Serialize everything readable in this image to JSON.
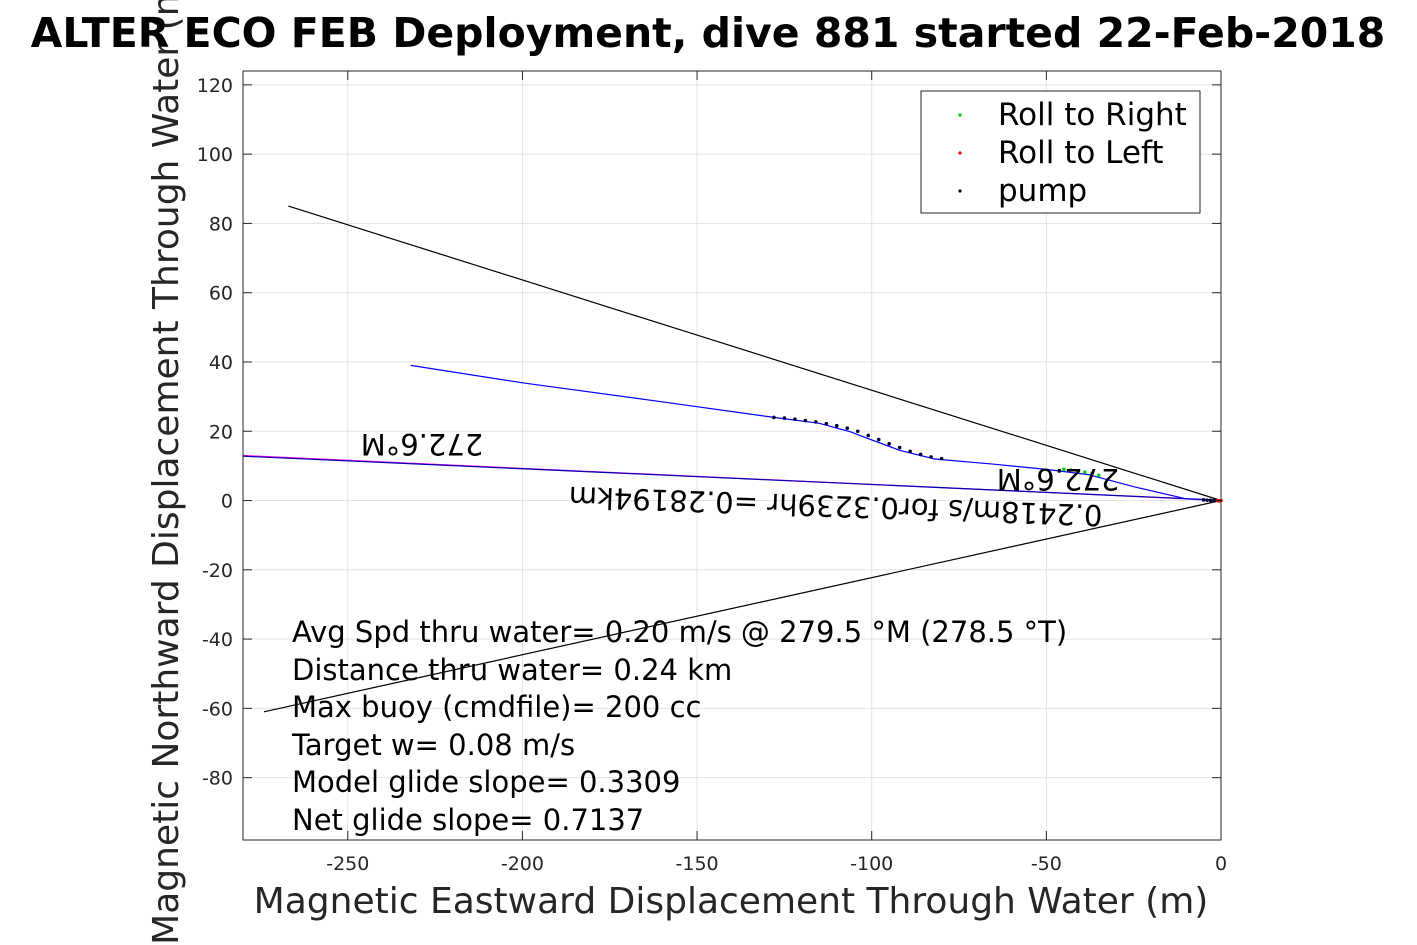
{
  "chart_data": {
    "type": "line",
    "title": "ALTER ECO FEB Deployment, dive 881 started 22-Feb-2018",
    "xlabel": "Magnetic Eastward Displacement Through Water (m)",
    "ylabel": "Magnetic Northward Displacement Through Water (m)",
    "xlim": [
      -280,
      0
    ],
    "ylim": [
      -98,
      124
    ],
    "xticks": [
      -250,
      -200,
      -150,
      -100,
      -50,
      0
    ],
    "xtick_labels": [
      "-250",
      "-200",
      "-150",
      "-100",
      "-50",
      "0"
    ],
    "yticks": [
      -80,
      -60,
      -40,
      -20,
      0,
      20,
      40,
      60,
      80,
      100,
      120
    ],
    "ytick_labels": [
      "-80",
      "-60",
      "-40",
      "-20",
      "0",
      "20",
      "40",
      "60",
      "80",
      "100",
      "120"
    ],
    "grid": true,
    "legend": {
      "position": "top-right",
      "entries": [
        {
          "label": "Roll to Right",
          "color": "#00cc00"
        },
        {
          "label": "Roll to Left",
          "color": "#ff0000"
        },
        {
          "label": "pump",
          "color": "#000000"
        }
      ]
    },
    "lines": [
      {
        "id": "envelope-upper",
        "color": "#000000",
        "points": [
          [
            -267,
            85
          ],
          [
            0,
            0
          ]
        ]
      },
      {
        "id": "envelope-lower",
        "color": "#000000",
        "points": [
          [
            -274,
            -61
          ],
          [
            0,
            0
          ]
        ]
      },
      {
        "id": "heading-line",
        "color": "#ff00ff",
        "points": [
          [
            -280,
            13
          ],
          [
            0,
            0
          ]
        ]
      },
      {
        "id": "heading-line-overlay",
        "color": "#0000aa",
        "points": [
          [
            -280,
            12.8
          ],
          [
            0,
            0.1
          ]
        ]
      },
      {
        "id": "track",
        "color": "#0000ff",
        "points": [
          [
            -232,
            39
          ],
          [
            -200,
            34
          ],
          [
            -160,
            28.5
          ],
          [
            -128,
            24
          ],
          [
            -115,
            22.3
          ],
          [
            -106,
            19.8
          ],
          [
            -100,
            17.5
          ],
          [
            -92,
            14.5
          ],
          [
            -82,
            12
          ],
          [
            -65,
            10.5
          ],
          [
            -50,
            9
          ],
          [
            -38,
            7.5
          ],
          [
            -25,
            4
          ],
          [
            -10,
            0.5
          ],
          [
            0,
            0
          ]
        ]
      }
    ],
    "markers": {
      "pump": [
        [
          -128,
          24
        ],
        [
          -125,
          23.8
        ],
        [
          -122,
          23.5
        ],
        [
          -119,
          23.1
        ],
        [
          -116,
          22.7
        ],
        [
          -113,
          22.2
        ],
        [
          -110,
          21.6
        ],
        [
          -107,
          20.9
        ],
        [
          -104,
          20
        ],
        [
          -101,
          18.8
        ],
        [
          -98,
          17.6
        ],
        [
          -95,
          16.4
        ],
        [
          -92,
          15.3
        ],
        [
          -89,
          14.2
        ],
        [
          -86,
          13.3
        ],
        [
          -83,
          12.6
        ],
        [
          -80,
          12.1
        ],
        [
          -5,
          0.2
        ],
        [
          -4,
          0.1
        ],
        [
          -3,
          0.05
        ],
        [
          -2,
          0
        ]
      ],
      "roll_right": [
        [
          -45,
          9
        ],
        [
          -43,
          8.8
        ],
        [
          -41,
          8.5
        ],
        [
          -39,
          8.2
        ],
        [
          -37,
          7.8
        ],
        [
          -35,
          7.3
        ]
      ],
      "roll_left": [
        [
          -1,
          0
        ],
        [
          -0.5,
          -0.1
        ],
        [
          0,
          0
        ]
      ]
    },
    "annotations": {
      "heading_far": "272.6°M",
      "heading_near": "272.6°M",
      "speed_line": "0.2418m/s for0.3239hr =0.28194km"
    },
    "stats": [
      "Avg Spd thru water=  0.20 m/s @ 279.5 °M (278.5 °T)",
      "Distance thru water=  0.24 km",
      "Max buoy (cmdfile)= 200 cc",
      "Target w= 0.08 m/s",
      "Model glide slope= 0.3309",
      "Net glide slope= 0.7137"
    ]
  }
}
